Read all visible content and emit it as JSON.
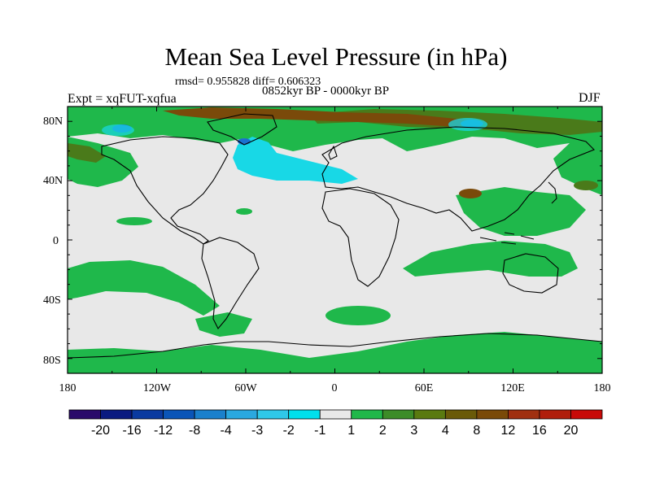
{
  "title": "Mean Sea Level Pressure (in hPa)",
  "stats": "rmsd= 0.955828 diff= 0.606323",
  "period": "0852kyr BP - 0000kyr BP",
  "experiment": "Expt = xqFUT-xqfua",
  "season": "DJF",
  "axes": {
    "lat_labels": [
      "80N",
      "40N",
      "0",
      "40S",
      "80S"
    ],
    "lon_labels": [
      "180",
      "120W",
      "60W",
      "0",
      "60E",
      "120E",
      "180"
    ]
  },
  "colorbar": {
    "colors": [
      "#2a0a6a",
      "#0a1a80",
      "#0a3aa0",
      "#0a55b8",
      "#1a80cc",
      "#2aa8e0",
      "#30c8e8",
      "#00e0ec",
      "#e8e8e8",
      "#20b84a",
      "#3c8c28",
      "#5a7a10",
      "#6a5a08",
      "#7a4a08",
      "#a03010",
      "#b01e0c",
      "#c80a08"
    ],
    "labels": [
      "-20",
      "-16",
      "-12",
      "-8",
      "-4",
      "-3",
      "-2",
      "-1",
      "1",
      "2",
      "3",
      "4",
      "8",
      "12",
      "16",
      "20"
    ]
  },
  "legend_colors": {
    "neutral": "#e8e8e8",
    "green": "#1fb84b",
    "dark_green": "#4a7a1a",
    "brown": "#7a4a0a",
    "cyan": "#18d8e6",
    "blue": "#1a70d0",
    "coast": "#000000"
  }
}
